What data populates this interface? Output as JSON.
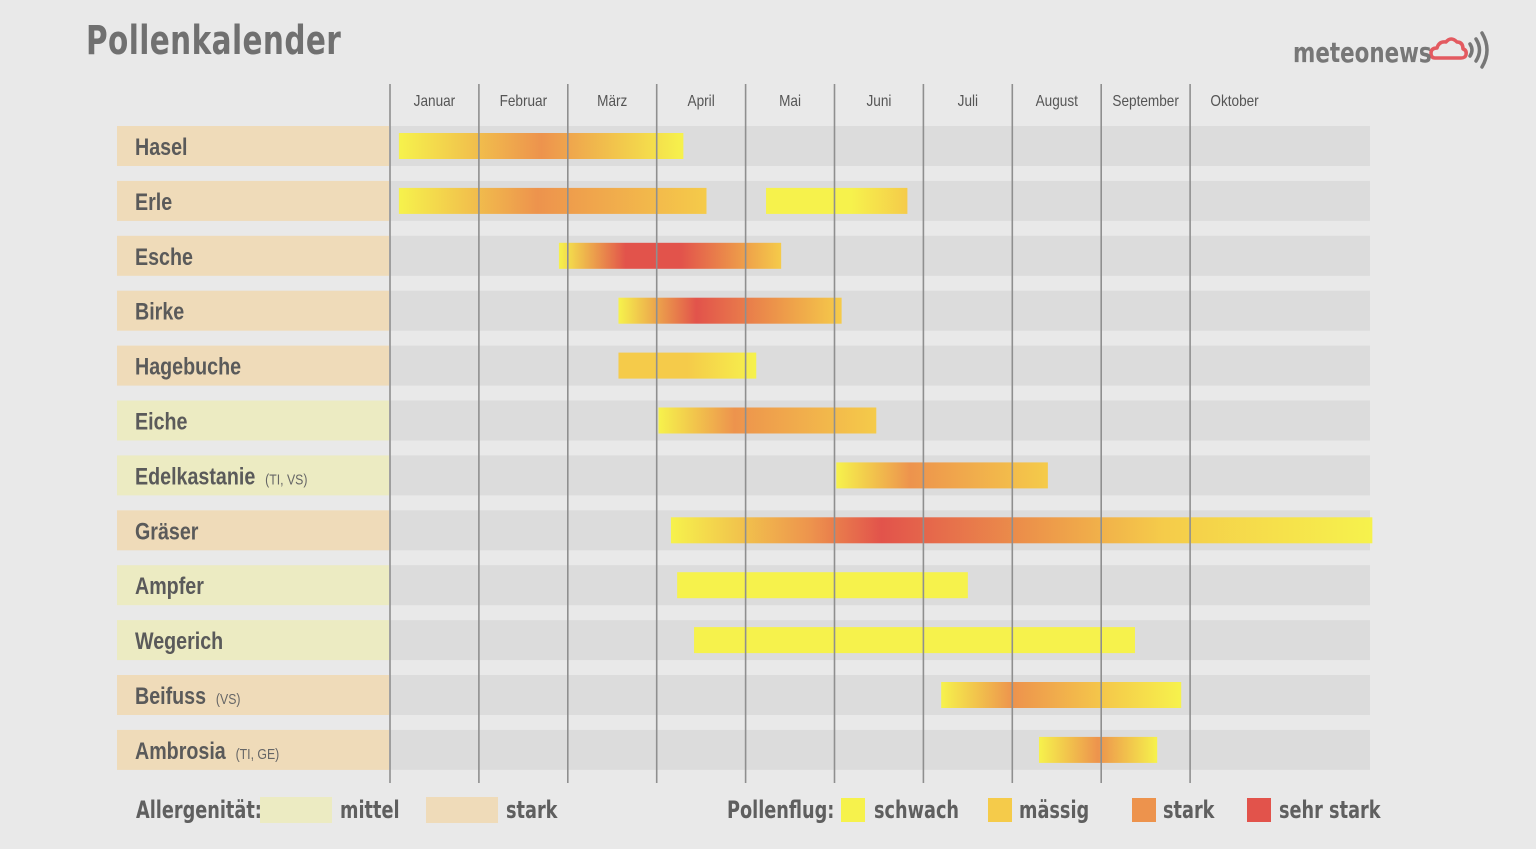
{
  "chart_data": {
    "type": "bar",
    "title": "Pollenkalender",
    "brand": "meteonews",
    "months": [
      "Januar",
      "Februar",
      "März",
      "April",
      "Mai",
      "Juni",
      "Juli",
      "August",
      "September",
      "Oktober"
    ],
    "rows": [
      {
        "name": "Hasel",
        "region": "",
        "allergenicity": "stark",
        "periods": [
          {
            "start": 0.1,
            "end": 3.3,
            "stops": [
              [
                0,
                "schwach"
              ],
              [
                0.5,
                "stark"
              ],
              [
                1,
                "schwach"
              ]
            ]
          }
        ]
      },
      {
        "name": "Erle",
        "region": "",
        "allergenicity": "stark",
        "periods": [
          {
            "start": 0.1,
            "end": 3.56,
            "stops": [
              [
                0,
                "schwach"
              ],
              [
                0.45,
                "stark"
              ],
              [
                1,
                "mässig"
              ]
            ]
          },
          {
            "start": 4.23,
            "end": 5.82,
            "stops": [
              [
                0,
                "schwach"
              ],
              [
                0.6,
                "schwach"
              ],
              [
                1,
                "mässig"
              ]
            ]
          }
        ]
      },
      {
        "name": "Esche",
        "region": "",
        "allergenicity": "stark",
        "periods": [
          {
            "start": 1.9,
            "end": 4.4,
            "stops": [
              [
                0,
                "schwach"
              ],
              [
                0.3,
                "sehr stark"
              ],
              [
                0.55,
                "sehr stark"
              ],
              [
                1,
                "mässig"
              ]
            ]
          }
        ]
      },
      {
        "name": "Birke",
        "region": "",
        "allergenicity": "stark",
        "periods": [
          {
            "start": 2.57,
            "end": 5.08,
            "stops": [
              [
                0,
                "schwach"
              ],
              [
                0.35,
                "sehr stark"
              ],
              [
                1,
                "mässig"
              ]
            ]
          }
        ]
      },
      {
        "name": "Hagebuche",
        "region": "",
        "allergenicity": "stark",
        "periods": [
          {
            "start": 2.57,
            "end": 4.12,
            "stops": [
              [
                0,
                "mässig"
              ],
              [
                0.5,
                "mässig"
              ],
              [
                1,
                "schwach"
              ]
            ]
          }
        ]
      },
      {
        "name": "Eiche",
        "region": "",
        "allergenicity": "mittel",
        "periods": [
          {
            "start": 3.02,
            "end": 5.47,
            "stops": [
              [
                0,
                "schwach"
              ],
              [
                0.35,
                "stark"
              ],
              [
                1,
                "mässig"
              ]
            ]
          }
        ]
      },
      {
        "name": "Edelkastanie",
        "region": "(TI, VS)",
        "allergenicity": "mittel",
        "periods": [
          {
            "start": 5.02,
            "end": 7.4,
            "stops": [
              [
                0,
                "schwach"
              ],
              [
                0.35,
                "stark"
              ],
              [
                1,
                "mässig"
              ]
            ]
          }
        ]
      },
      {
        "name": "Gräser",
        "region": "",
        "allergenicity": "stark",
        "periods": [
          {
            "start": 3.16,
            "end": 11.05,
            "stops": [
              [
                0,
                "schwach"
              ],
              [
                0.2,
                "stark"
              ],
              [
                0.3,
                "sehr stark"
              ],
              [
                0.7,
                "mässig"
              ],
              [
                1,
                "schwach"
              ]
            ]
          }
        ]
      },
      {
        "name": "Ampfer",
        "region": "",
        "allergenicity": "mittel",
        "periods": [
          {
            "start": 3.23,
            "end": 6.5,
            "stops": [
              [
                0,
                "schwach"
              ],
              [
                1,
                "schwach"
              ]
            ]
          }
        ]
      },
      {
        "name": "Wegerich",
        "region": "",
        "allergenicity": "mittel",
        "periods": [
          {
            "start": 3.42,
            "end": 8.38,
            "stops": [
              [
                0,
                "schwach"
              ],
              [
                1,
                "schwach"
              ]
            ]
          }
        ]
      },
      {
        "name": "Beifuss",
        "region": "(VS)",
        "allergenicity": "stark",
        "periods": [
          {
            "start": 6.2,
            "end": 8.9,
            "stops": [
              [
                0,
                "schwach"
              ],
              [
                0.3,
                "stark"
              ],
              [
                0.7,
                "mässig"
              ],
              [
                1,
                "schwach"
              ]
            ]
          }
        ]
      },
      {
        "name": "Ambrosia",
        "region": "(TI, GE)",
        "allergenicity": "stark",
        "periods": [
          {
            "start": 7.3,
            "end": 8.63,
            "stops": [
              [
                0,
                "schwach"
              ],
              [
                0.5,
                "stark"
              ],
              [
                1,
                "schwach"
              ]
            ]
          }
        ]
      }
    ],
    "legend": {
      "allergenicity_label": "Allergenität:",
      "allergenicity": [
        {
          "key": "mittel",
          "label": "mittel",
          "color": "#ecebc2"
        },
        {
          "key": "stark",
          "label": "stark",
          "color": "#efdbb9"
        }
      ],
      "pollen_label": "Pollenflug:",
      "pollen": [
        {
          "key": "schwach",
          "label": "schwach",
          "color": "#f6f24c"
        },
        {
          "key": "mässig",
          "label": "mässig",
          "color": "#f5cb4a"
        },
        {
          "key": "stark",
          "label": "stark",
          "color": "#ed934d"
        },
        {
          "key": "sehr stark",
          "label": "sehr stark",
          "color": "#e2534b"
        }
      ]
    }
  }
}
